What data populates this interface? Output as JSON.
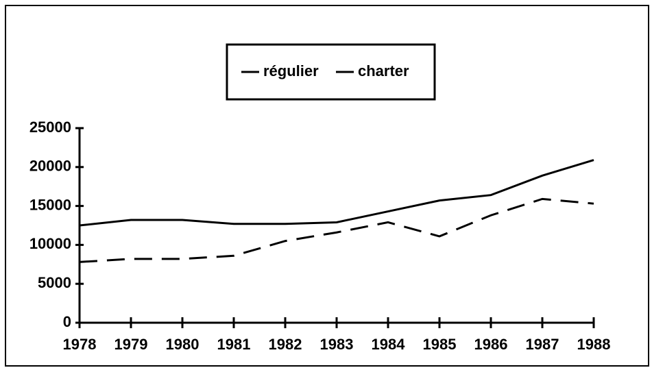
{
  "chart_data": {
    "type": "line",
    "x": [
      1978,
      1979,
      1980,
      1981,
      1982,
      1983,
      1984,
      1985,
      1986,
      1987,
      1988
    ],
    "series": [
      {
        "name": "régulier",
        "color": "#000000",
        "style": "solid",
        "values": [
          12500,
          13200,
          13200,
          12700,
          12700,
          12900,
          14300,
          15700,
          16400,
          18900,
          20900
        ]
      },
      {
        "name": "charter",
        "color": "#000000",
        "style": "dashed",
        "values": [
          7800,
          8200,
          8200,
          8600,
          10500,
          11600,
          12900,
          11100,
          13800,
          15900,
          15300
        ]
      }
    ],
    "xlim": [
      1978,
      1988
    ],
    "xticks": [
      1978,
      1979,
      1980,
      1981,
      1982,
      1983,
      1984,
      1985,
      1986,
      1987,
      1988
    ],
    "ylim": [
      0,
      25000
    ],
    "yticks": [
      0,
      5000,
      10000,
      15000,
      20000,
      25000
    ],
    "grid": false,
    "legend": "top"
  }
}
